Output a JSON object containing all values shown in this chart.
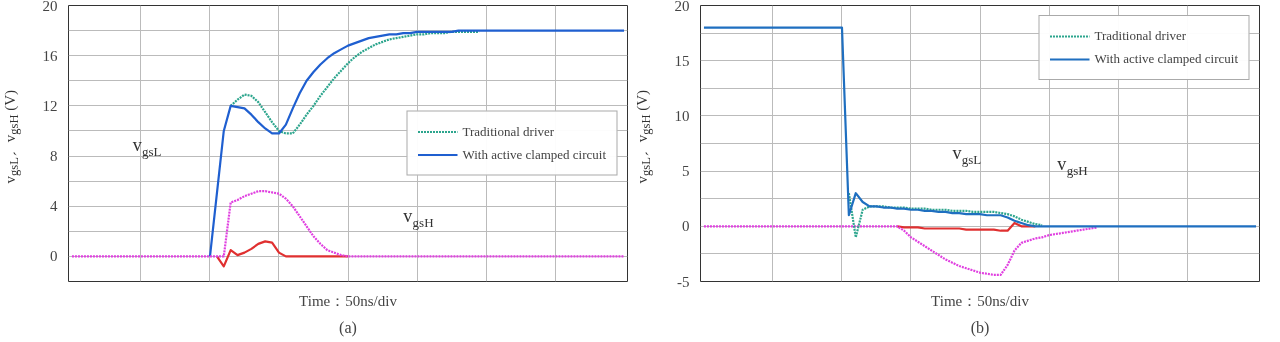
{
  "chart_data": [
    {
      "type": "line",
      "title": "(a)",
      "xlabel": "Time：50ns/div",
      "ylabel": "v$_{gsL}$、v$_{gsH}$ (V)",
      "categories": [
        null,
        null,
        null,
        null,
        null,
        null,
        null,
        null,
        null,
        null,
        null,
        null,
        null,
        null,
        null,
        null,
        null,
        null,
        null,
        null,
        null,
        null,
        null,
        null,
        null,
        null,
        null,
        null,
        null,
        null,
        null,
        null,
        null,
        null,
        null,
        null,
        null,
        null,
        null,
        null,
        null,
        null,
        null,
        null,
        null,
        null,
        null,
        null,
        null,
        null,
        null,
        null,
        null,
        null,
        null,
        null,
        null,
        null,
        null,
        null,
        null,
        null,
        null,
        null,
        null,
        null,
        null,
        null,
        null,
        null,
        null,
        null,
        null,
        null,
        null,
        null,
        null,
        null,
        null,
        null,
        null
      ],
      "ylim": [
        -2,
        20
      ],
      "yticks": [
        0,
        {
          "value": 2,
          "label": null
        },
        4,
        {
          "value": 6,
          "label": null
        },
        8,
        {
          "value": 10,
          "label": null
        },
        12,
        {
          "value": 14,
          "label": null
        },
        16,
        {
          "value": 18,
          "label": null
        },
        20
      ],
      "grid": true,
      "legend": "right",
      "series": [
        {
          "name": "Traditional driver",
          "color": "#2ca58d",
          "line_style": "dashed",
          "values": [
            null,
            null,
            null,
            null,
            null,
            null,
            null,
            null,
            null,
            null,
            null,
            null,
            null,
            null,
            null,
            null,
            null,
            null,
            null,
            null,
            null,
            null,
            null,
            12,
            12.5,
            12.9,
            12.8,
            12.3,
            11.5,
            10.7,
            10.0,
            9.8,
            9.8,
            10.5,
            11.3,
            12,
            12.8,
            13.5,
            14.2,
            14.8,
            15.4,
            15.9,
            16.3,
            16.6,
            16.9,
            17.1,
            17.3,
            17.4,
            17.5,
            17.6,
            17.7,
            17.7,
            17.8,
            17.8,
            17.8,
            17.9,
            17.9,
            17.9,
            17.9,
            17.9,
            null,
            null,
            null,
            null,
            null,
            null,
            null,
            null,
            null,
            null,
            null,
            null,
            null,
            null,
            null,
            null,
            null,
            null,
            null,
            null,
            null
          ]
        },
        {
          "name": "With active clamped circuit",
          "color": "#1f5fd0",
          "line_style": "solid",
          "values": [
            null,
            null,
            null,
            null,
            null,
            null,
            null,
            null,
            null,
            null,
            null,
            null,
            null,
            null,
            null,
            null,
            null,
            null,
            null,
            null,
            0,
            5,
            10,
            12,
            11.9,
            11.8,
            11.3,
            10.7,
            10.2,
            9.8,
            9.8,
            10.5,
            11.8,
            13,
            14,
            14.7,
            15.3,
            15.8,
            16.2,
            16.5,
            16.8,
            17,
            17.2,
            17.4,
            17.5,
            17.6,
            17.7,
            17.7,
            17.8,
            17.8,
            17.9,
            17.9,
            17.9,
            17.9,
            17.9,
            17.9,
            18,
            18,
            18,
            18,
            18,
            18,
            18,
            18,
            18,
            18,
            18,
            18,
            18,
            18,
            18,
            18,
            18,
            18,
            18,
            18,
            18,
            18,
            18,
            18,
            18
          ]
        },
        {
          "color": "#e03030",
          "line_style": "solid",
          "values": [
            null,
            null,
            null,
            null,
            null,
            null,
            null,
            null,
            null,
            null,
            null,
            null,
            null,
            null,
            null,
            null,
            null,
            null,
            null,
            null,
            null,
            0,
            -0.8,
            0.5,
            0.1,
            0.3,
            0.6,
            1.0,
            1.2,
            1.1,
            0.3,
            0,
            0,
            0,
            0,
            0,
            0,
            0,
            0,
            0,
            0,
            null,
            null,
            null,
            null,
            null,
            null,
            null,
            null,
            null,
            null,
            null,
            null,
            null,
            null,
            null,
            null,
            null,
            null,
            null,
            null,
            null,
            null,
            null,
            null,
            null,
            null,
            null,
            null,
            null,
            null,
            null,
            null,
            null,
            null,
            null,
            null,
            null,
            null,
            null,
            null
          ]
        },
        {
          "color": "#e040e0",
          "line_style": "dashed",
          "values": [
            0,
            0,
            0,
            0,
            0,
            0,
            0,
            0,
            0,
            0,
            0,
            0,
            0,
            0,
            0,
            0,
            0,
            0,
            0,
            0,
            0,
            0,
            0,
            4.3,
            4.5,
            4.8,
            5.0,
            5.2,
            5.2,
            5.1,
            5.0,
            4.6,
            4.0,
            3.2,
            2.4,
            1.6,
            1.0,
            0.5,
            0.3,
            0.1,
            0,
            0,
            0,
            0,
            0,
            0,
            0,
            0,
            0,
            0,
            0,
            0,
            0,
            0,
            0,
            0,
            0,
            0,
            0,
            0,
            0,
            0,
            0,
            0,
            0,
            0,
            0,
            0,
            0,
            0,
            0,
            0,
            0,
            0,
            0,
            0,
            0,
            0,
            0,
            0,
            0
          ]
        }
      ],
      "annotations": [
        "v$_{gsL}$",
        "v$_{gsH}$"
      ]
    },
    {
      "type": "line",
      "title": "(b)",
      "xlabel": "Time：50ns/div",
      "ylabel": "v$_{gsL}$、v$_{gsH}$ (V)",
      "categories": [
        null,
        null,
        null,
        null,
        null,
        null,
        null,
        null,
        null,
        null,
        null,
        null,
        null,
        null,
        null,
        null,
        null,
        null,
        null,
        null,
        null,
        null,
        null,
        null,
        null,
        null,
        null,
        null,
        null,
        null,
        null,
        null,
        null,
        null,
        null,
        null,
        null,
        null,
        null,
        null,
        null,
        null,
        null,
        null,
        null,
        null,
        null,
        null,
        null,
        null,
        null,
        null,
        null,
        null,
        null,
        null,
        null,
        null,
        null,
        null,
        null,
        null,
        null,
        null,
        null,
        null,
        null,
        null,
        null,
        null,
        null,
        null,
        null,
        null,
        null,
        null,
        null,
        null,
        null,
        null,
        null
      ],
      "ylim": [
        -5,
        20
      ],
      "yticks": [
        -5,
        {
          "value": -2.5,
          "label": null
        },
        0,
        {
          "value": 2.5,
          "label": null
        },
        5,
        {
          "value": 7.5,
          "label": null
        },
        10,
        {
          "value": 12.5,
          "label": null
        },
        15,
        {
          "value": 17.5,
          "label": null
        },
        20
      ],
      "grid": true,
      "legend": "top right",
      "series": [
        {
          "color": "#e03030",
          "line_style": "solid",
          "values": [
            null,
            null,
            null,
            null,
            null,
            null,
            null,
            null,
            null,
            null,
            null,
            null,
            null,
            null,
            null,
            null,
            null,
            null,
            null,
            null,
            null,
            null,
            null,
            null,
            null,
            null,
            null,
            null,
            0,
            -0.1,
            -0.1,
            -0.1,
            -0.2,
            -0.2,
            -0.2,
            -0.2,
            -0.2,
            -0.2,
            -0.3,
            -0.3,
            -0.3,
            -0.3,
            -0.3,
            -0.4,
            -0.4,
            0.3,
            0,
            0,
            0,
            null,
            null,
            null,
            null,
            null,
            null,
            null,
            null,
            null,
            null,
            null,
            null,
            null,
            null,
            null,
            null,
            null,
            null,
            null,
            null,
            null,
            null,
            null,
            null,
            null,
            null,
            null,
            null,
            null,
            null,
            null,
            null
          ]
        },
        {
          "color": "#e040e0",
          "line_style": "dashed",
          "values": [
            0,
            0,
            0,
            0,
            0,
            0,
            0,
            0,
            0,
            0,
            0,
            0,
            0,
            0,
            0,
            0,
            0,
            0,
            0,
            0,
            0,
            0,
            0,
            0,
            0,
            0,
            0,
            0,
            0,
            -0.4,
            -1.0,
            -1.4,
            -1.8,
            -2.2,
            -2.6,
            -3.0,
            -3.3,
            -3.6,
            -3.8,
            -4.0,
            -4.2,
            -4.3,
            -4.4,
            -4.4,
            -3.5,
            -2.2,
            -1.5,
            -1.3,
            -1.1,
            -1.0,
            -0.8,
            -0.7,
            -0.6,
            -0.5,
            -0.4,
            -0.3,
            -0.2,
            -0.1,
            null,
            null,
            null,
            null,
            null,
            null,
            null,
            null,
            null,
            null,
            null,
            null,
            null,
            null,
            null,
            null,
            null,
            null,
            null,
            null,
            null,
            null,
            null
          ]
        },
        {
          "name": "Traditional driver",
          "color": "#2ca58d",
          "line_style": "dashed",
          "values": [
            null,
            null,
            null,
            null,
            null,
            null,
            null,
            null,
            null,
            null,
            null,
            null,
            null,
            null,
            null,
            null,
            null,
            null,
            null,
            null,
            null,
            3,
            -1,
            1.5,
            1.8,
            1.8,
            1.8,
            1.7,
            1.7,
            1.7,
            1.6,
            1.6,
            1.6,
            1.5,
            1.5,
            1.5,
            1.4,
            1.4,
            1.4,
            1.3,
            1.3,
            1.3,
            1.3,
            1.2,
            1.1,
            0.9,
            0.6,
            0.4,
            0.2,
            0.1,
            null,
            null,
            null,
            null,
            null,
            null,
            null,
            null,
            null,
            null,
            null,
            null,
            null,
            null,
            null,
            null,
            null,
            null,
            null,
            null,
            null,
            null,
            null,
            null,
            null,
            null,
            null,
            null,
            null,
            null,
            null
          ]
        },
        {
          "name": "With active clamped circuit",
          "color": "#1f6fc0",
          "line_style": "solid",
          "values": [
            18,
            18,
            18,
            18,
            18,
            18,
            18,
            18,
            18,
            18,
            18,
            18,
            18,
            18,
            18,
            18,
            18,
            18,
            18,
            18,
            18,
            1.0,
            3.0,
            2.2,
            1.8,
            1.8,
            1.7,
            1.7,
            1.6,
            1.6,
            1.5,
            1.5,
            1.4,
            1.4,
            1.3,
            1.3,
            1.2,
            1.2,
            1.1,
            1.1,
            1.1,
            1.0,
            1.0,
            1.0,
            0.8,
            0.5,
            0.3,
            0.1,
            0,
            0,
            0,
            0,
            0,
            0,
            0,
            0,
            0,
            0,
            0,
            0,
            0,
            0,
            0,
            0,
            0,
            0,
            0,
            0,
            0,
            0,
            0,
            0,
            0,
            0,
            0,
            0,
            0,
            0,
            0,
            0,
            0
          ]
        }
      ],
      "annotations": [
        "v$_{gsL}$",
        "v$_{gsH}$"
      ]
    }
  ]
}
